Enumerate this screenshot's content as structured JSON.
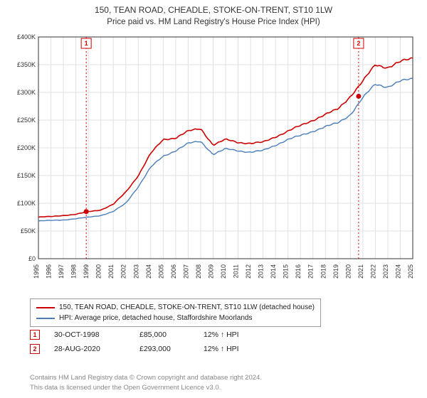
{
  "title": "150, TEAN ROAD, CHEADLE, STOKE-ON-TRENT, ST10 1LW",
  "subtitle": "Price paid vs. HM Land Registry's House Price Index (HPI)",
  "chart": {
    "type": "line",
    "background_color": "#ffffff",
    "grid_color": "#e0e0e0",
    "axis_color": "#333333",
    "tick_fontsize": 9,
    "x_years": [
      1995,
      1996,
      1997,
      1998,
      1999,
      2000,
      2001,
      2002,
      2003,
      2004,
      2005,
      2006,
      2007,
      2008,
      2009,
      2010,
      2011,
      2012,
      2013,
      2014,
      2015,
      2016,
      2017,
      2018,
      2019,
      2020,
      2021,
      2022,
      2023,
      2024,
      2025
    ],
    "ylim": [
      0,
      400000
    ],
    "ytick_step": 50000,
    "y_prefix": "£",
    "ytick_labels": [
      "£0",
      "£50K",
      "£100K",
      "£150K",
      "£200K",
      "£250K",
      "£300K",
      "£350K",
      "£400K"
    ],
    "series": [
      {
        "name": "price_paid",
        "label": "150, TEAN ROAD, CHEADLE, STOKE-ON-TRENT, ST10 1LW (detached house)",
        "color": "#cc0000",
        "line_width": 1.6,
        "values": [
          75000,
          76000,
          78000,
          80000,
          85000,
          88000,
          98000,
          120000,
          150000,
          190000,
          215000,
          218000,
          230000,
          235000,
          205000,
          215000,
          210000,
          208000,
          210000,
          220000,
          230000,
          240000,
          250000,
          260000,
          270000,
          293000,
          320000,
          350000,
          345000,
          355000,
          362000
        ]
      },
      {
        "name": "hpi",
        "label": "HPI: Average price, detached house, Staffordshire Moorlands",
        "color": "#4a7ebb",
        "line_width": 1.4,
        "values": [
          68000,
          69000,
          70000,
          72000,
          75000,
          78000,
          85000,
          100000,
          130000,
          165000,
          185000,
          195000,
          208000,
          212000,
          188000,
          198000,
          195000,
          192000,
          195000,
          205000,
          215000,
          222000,
          230000,
          238000,
          245000,
          260000,
          290000,
          315000,
          310000,
          320000,
          325000
        ]
      }
    ],
    "markers": [
      {
        "id": "1",
        "year": 1998.83,
        "value": 85000,
        "color": "#cc0000"
      },
      {
        "id": "2",
        "year": 2020.66,
        "value": 293000,
        "color": "#cc0000"
      }
    ],
    "marker_line_color": "#cc0000",
    "marker_line_dash": "2,3"
  },
  "legend": {
    "items": [
      {
        "color": "#cc0000",
        "text": "150, TEAN ROAD, CHEADLE, STOKE-ON-TRENT, ST10 1LW (detached house)"
      },
      {
        "color": "#4a7ebb",
        "text": "HPI: Average price, detached house, Staffordshire Moorlands"
      }
    ]
  },
  "events": [
    {
      "id": "1",
      "color": "#cc0000",
      "date": "30-OCT-1998",
      "price": "£85,000",
      "change": "12% ↑ HPI"
    },
    {
      "id": "2",
      "color": "#cc0000",
      "date": "28-AUG-2020",
      "price": "£293,000",
      "change": "12% ↑ HPI"
    }
  ],
  "footer": {
    "line1": "Contains HM Land Registry data © Crown copyright and database right 2024.",
    "line2": "This data is licensed under the Open Government Licence v3.0."
  }
}
